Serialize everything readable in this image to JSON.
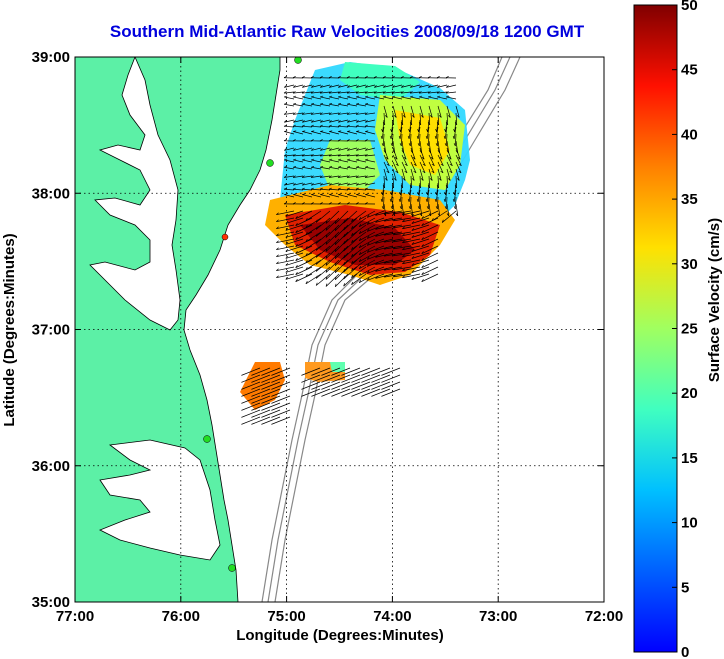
{
  "title": "Southern Mid-Atlantic Raw Velocities 2008/09/18 1200 GMT",
  "x_axis": {
    "label": "Longitude (Degrees:Minutes)",
    "ticks": [
      "77:00",
      "76:00",
      "75:00",
      "74:00",
      "73:00",
      "72:00"
    ]
  },
  "y_axis": {
    "label": "Latitude (Degrees:Minutes)",
    "ticks": [
      "39:00",
      "38:00",
      "37:00",
      "36:00",
      "35:00"
    ]
  },
  "colorbar": {
    "label": "Surface Velocity (cm/s)",
    "ticks": [
      "0",
      "5",
      "10",
      "15",
      "20",
      "25",
      "30",
      "35",
      "40",
      "45",
      "50"
    ],
    "min": 0,
    "max": 50,
    "colormap": "jet"
  },
  "colors": {
    "title": "#0000dd",
    "land": "#5cf0a6",
    "coast": "#000000",
    "bathymetry": "#888888",
    "radar_sites": "#22dd22"
  },
  "map_extent": {
    "lon_west": -77.0,
    "lon_east": -72.0,
    "lat_south": 35.0,
    "lat_north": 39.0,
    "grid": true
  }
}
